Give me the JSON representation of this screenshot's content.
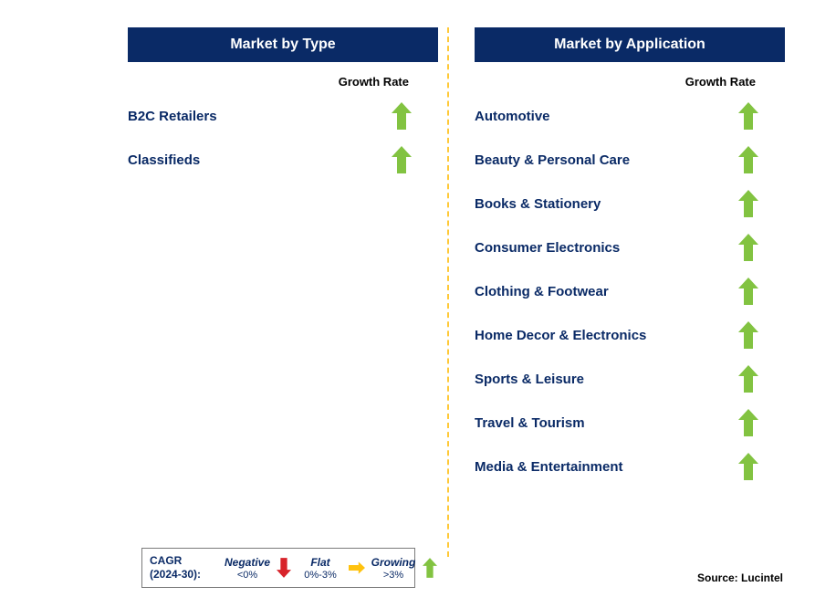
{
  "colors": {
    "header_bg": "#0a2a66",
    "header_text": "#ffffff",
    "label_text": "#0a2a66",
    "body_bg": "#ffffff",
    "divider": "#ffc938",
    "arrow_green": "#82c341",
    "arrow_red": "#d8232a",
    "arrow_yellow": "#ffc20e",
    "legend_border": "#7a7a7a",
    "black": "#000000"
  },
  "left": {
    "title": "Market by Type",
    "rate_label": "Growth Rate",
    "items": [
      {
        "label": "B2C Retailers",
        "trend": "growing"
      },
      {
        "label": "Classifieds",
        "trend": "growing"
      }
    ]
  },
  "right": {
    "title": "Market by Application",
    "rate_label": "Growth Rate",
    "items": [
      {
        "label": "Automotive",
        "trend": "growing"
      },
      {
        "label": "Beauty & Personal Care",
        "trend": "growing"
      },
      {
        "label": "Books & Stationery",
        "trend": "growing"
      },
      {
        "label": "Consumer Electronics",
        "trend": "growing"
      },
      {
        "label": "Clothing & Footwear",
        "trend": "growing"
      },
      {
        "label": "Home Decor & Electronics",
        "trend": "growing"
      },
      {
        "label": "Sports & Leisure",
        "trend": "growing"
      },
      {
        "label": "Travel & Tourism",
        "trend": "growing"
      },
      {
        "label": "Media & Entertainment",
        "trend": "growing"
      }
    ]
  },
  "legend": {
    "title_line1": "CAGR",
    "title_line2": "(2024-30):",
    "categories": [
      {
        "name": "Negative",
        "range": "<0%",
        "arrow": "down",
        "color": "#d8232a"
      },
      {
        "name": "Flat",
        "range": "0%-3%",
        "arrow": "right",
        "color": "#ffc20e"
      },
      {
        "name": "Growing",
        "range": ">3%",
        "arrow": "up",
        "color": "#82c341"
      }
    ]
  },
  "source": "Source: Lucintel"
}
